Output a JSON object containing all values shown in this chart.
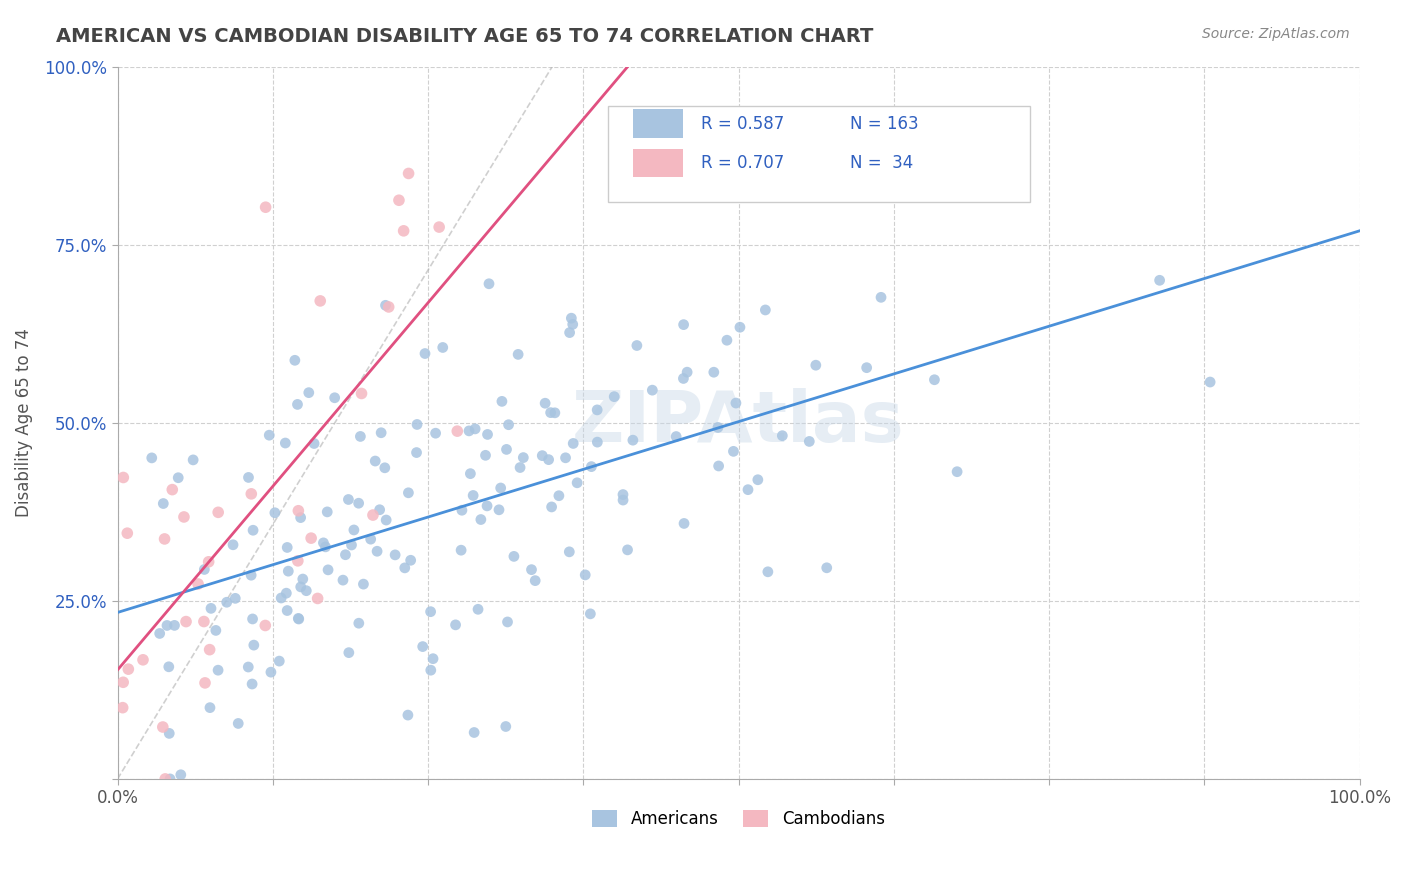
{
  "title": "AMERICAN VS CAMBODIAN DISABILITY AGE 65 TO 74 CORRELATION CHART",
  "source_text": "Source: ZipAtlas.com",
  "xlabel": "",
  "ylabel": "Disability Age 65 to 74",
  "watermark": "ZIPAtlas",
  "legend_r1": "R = 0.587",
  "legend_n1": "N = 163",
  "legend_r2": "R = 0.707",
  "legend_n2": "N =  34",
  "american_color": "#a8c4e0",
  "cambodian_color": "#f4b8c1",
  "american_line_color": "#4a90d9",
  "cambodian_line_color": "#e05080",
  "trend_line_dashed_color": "#b0b0b0",
  "background_color": "#ffffff",
  "grid_color": "#d0d0d0",
  "title_color": "#444444",
  "axis_label_color": "#555555",
  "legend_text_color": "#333333",
  "r_value_color": "#3060c0",
  "xlim": [
    0.0,
    1.0
  ],
  "ylim": [
    0.0,
    1.0
  ],
  "xticks": [
    0.0,
    0.125,
    0.25,
    0.375,
    0.5,
    0.625,
    0.75,
    0.875,
    1.0
  ],
  "ytick_positions": [
    0.0,
    0.25,
    0.5,
    0.75,
    1.0
  ],
  "ytick_labels": [
    "",
    "25.0%",
    "50.0%",
    "75.0%",
    "100.0%"
  ],
  "xtick_labels": [
    "0.0%",
    "",
    "",
    "",
    "",
    "",
    "",
    "",
    "100.0%"
  ],
  "american_seed": 42,
  "cambodian_seed": 7,
  "american_r": 0.587,
  "cambodian_r": 0.707,
  "american_n": 163,
  "cambodian_n": 34
}
